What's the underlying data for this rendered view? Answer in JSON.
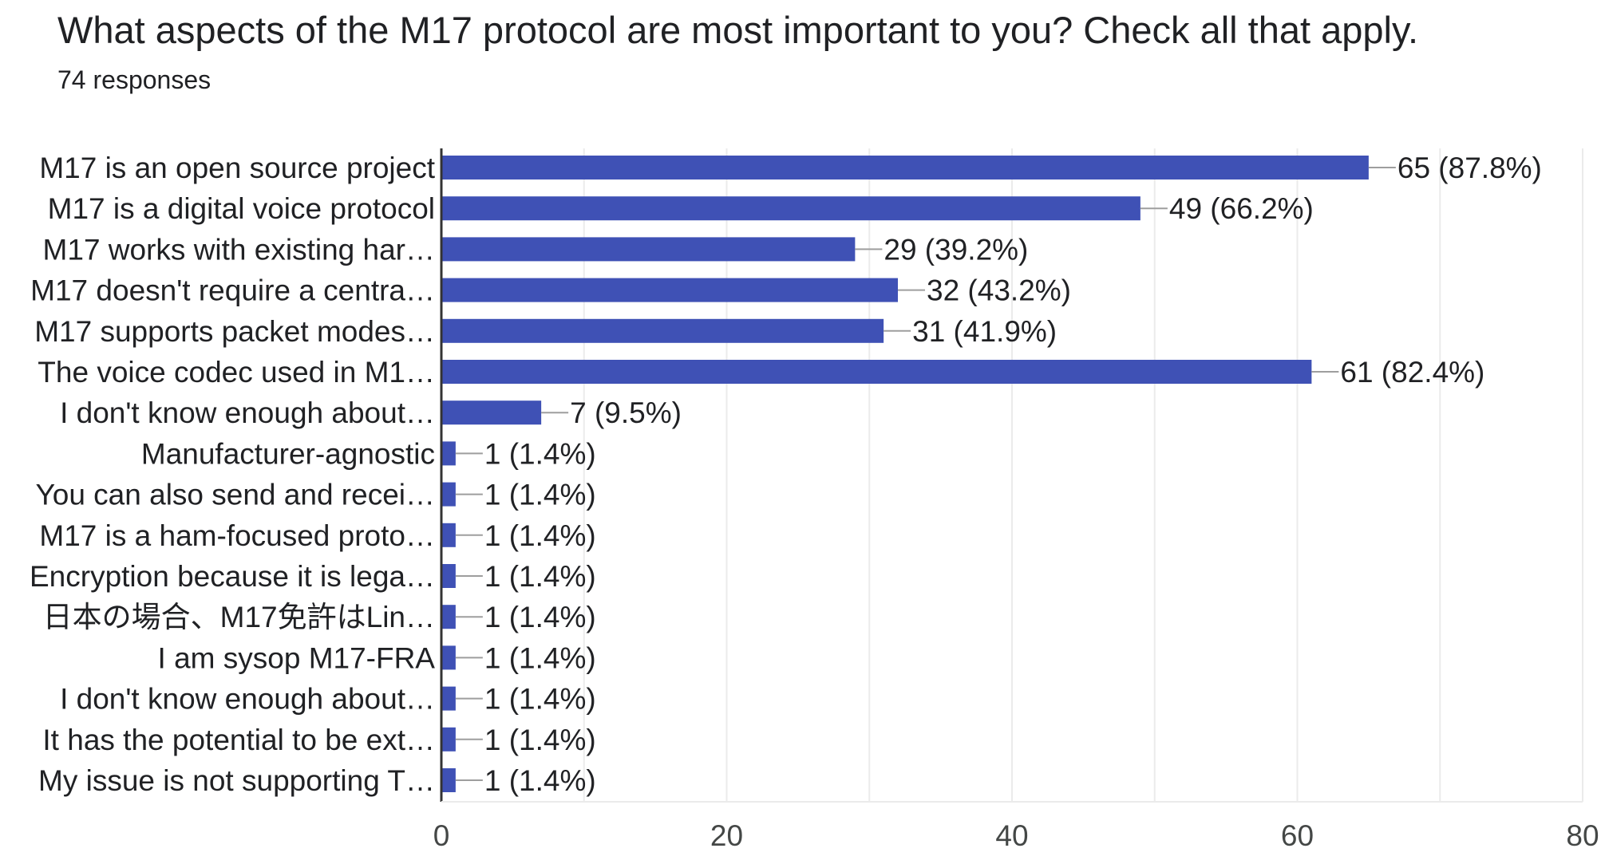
{
  "title": "What aspects of the M17 protocol are most important to you? Check all that apply.",
  "subtitle": "74 responses",
  "colors": {
    "bar": "#3f51b5",
    "grid": "#ebebeb",
    "axis": "#333333",
    "leader": "#9e9e9e",
    "text": "#202124"
  },
  "chart_data": {
    "type": "bar",
    "orientation": "horizontal",
    "title": "What aspects of the M17 protocol are most important to you? Check all that apply.",
    "subtitle": "74 responses",
    "categories": [
      "M17 is an open source project",
      "M17 is a digital voice protocol",
      "M17 works with existing har…",
      "M17 doesn't require a centra…",
      "M17 supports packet modes…",
      "The voice codec used in M1…",
      "I don't know enough about…",
      "Manufacturer-agnostic",
      "You can also send and recei…",
      "M17 is a ham-focused proto…",
      "Encryption because it is lega…",
      "日本の場合、M17免許はLin…",
      "I am sysop M17-FRA",
      "I don't know enough about…",
      "It has the potential to be ext…",
      "My issue is not supporting T…"
    ],
    "values": [
      65,
      49,
      29,
      32,
      31,
      61,
      7,
      1,
      1,
      1,
      1,
      1,
      1,
      1,
      1,
      1
    ],
    "data_labels": [
      "65 (87.8%)",
      "49 (66.2%)",
      "29 (39.2%)",
      "32 (43.2%)",
      "31 (41.9%)",
      "61 (82.4%)",
      "7 (9.5%)",
      "1 (1.4%)",
      "1 (1.4%)",
      "1 (1.4%)",
      "1 (1.4%)",
      "1 (1.4%)",
      "1 (1.4%)",
      "1 (1.4%)",
      "1 (1.4%)",
      "1 (1.4%)"
    ],
    "xlim": [
      0,
      80
    ],
    "xticks": [
      0,
      20,
      40,
      60,
      80
    ],
    "xtick_labels": [
      "0",
      "20",
      "40",
      "60",
      "80"
    ],
    "grid": true
  }
}
